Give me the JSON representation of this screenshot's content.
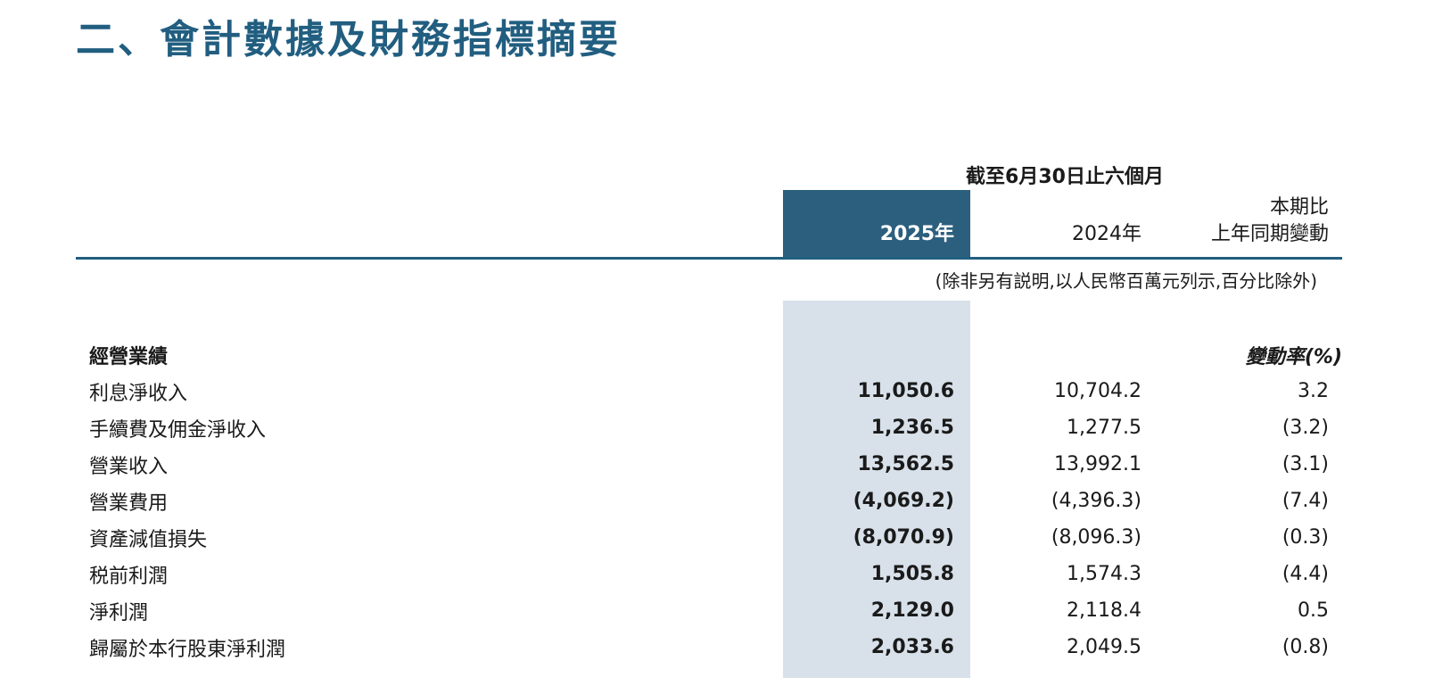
{
  "page": {
    "title": "二、會計數據及財務指標摘要"
  },
  "table": {
    "period_header": "截至6月30日止六個月",
    "columns": {
      "col_2025": "2025年",
      "col_2024": "2024年",
      "change_line1": "本期比",
      "change_line2": "上年同期變動"
    },
    "note": "(除非另有説明,以人民幣百萬元列示,百分比除外)",
    "section_header": "經營業績",
    "change_rate_header": "變動率(%)",
    "rows": [
      {
        "label": "利息淨收入",
        "v2025": "11,050.6",
        "v2024": "10,704.2",
        "change": "3.2"
      },
      {
        "label": "手續費及佣金淨收入",
        "v2025": "1,236.5",
        "v2024": "1,277.5",
        "change": "(3.2)"
      },
      {
        "label": "營業收入",
        "v2025": "13,562.5",
        "v2024": "13,992.1",
        "change": "(3.1)"
      },
      {
        "label": "營業費用",
        "v2025": "(4,069.2)",
        "v2024": "(4,396.3)",
        "change": "(7.4)"
      },
      {
        "label": "資產減值損失",
        "v2025": "(8,070.9)",
        "v2024": "(8,096.3)",
        "change": "(0.3)"
      },
      {
        "label": "税前利潤",
        "v2025": "1,505.8",
        "v2024": "1,574.3",
        "change": "(4.4)"
      },
      {
        "label": "淨利潤",
        "v2025": "2,129.0",
        "v2024": "2,118.4",
        "change": "0.5"
      },
      {
        "label": "歸屬於本行股東淨利潤",
        "v2025": "2,033.6",
        "v2024": "2,049.5",
        "change": "(0.8)"
      }
    ]
  },
  "colors": {
    "accent": "#215e80",
    "header_bg": "#2c5f7e",
    "band_bg": "#d8e1ea"
  }
}
